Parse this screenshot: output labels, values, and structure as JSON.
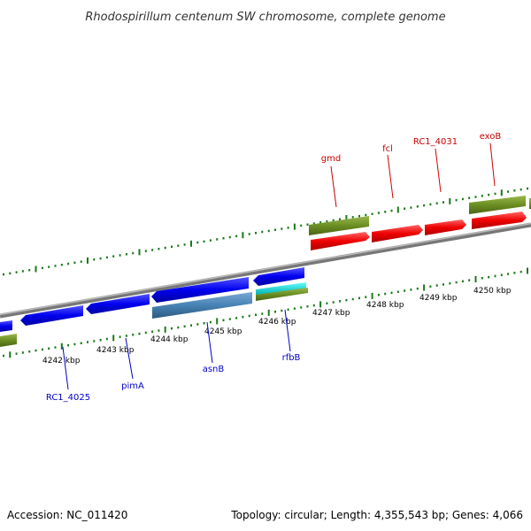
{
  "title": "Rhodospirillum centenum SW chromosome, complete genome",
  "footer": {
    "accession": "Accession: NC_011420",
    "summary": "Topology: circular; Length: 4,355,543 bp; Genes: 4,066"
  },
  "kbp_labels": [
    "4242 kbp",
    "4243 kbp",
    "4244 kbp",
    "4245 kbp",
    "4246 kbp",
    "4247 kbp",
    "4248 kbp",
    "4249 kbp",
    "4250 kbp"
  ],
  "forward_genes": [
    "gmd",
    "fcl",
    "RC1_4031",
    "exoB"
  ],
  "reverse_genes": [
    "RC1_4025",
    "pimA",
    "asnB",
    "rfbB"
  ],
  "colors": {
    "forward_label": "#cc0000",
    "reverse_label": "#0000cc",
    "cds_forward": "#ee0000",
    "cds_reverse": "#0000ee",
    "rna_green": "#6b8e23",
    "rna_blue": "#4682b4",
    "cyan": "#00cccc",
    "tick": "#1a7a1a",
    "backbone": "#888888"
  }
}
